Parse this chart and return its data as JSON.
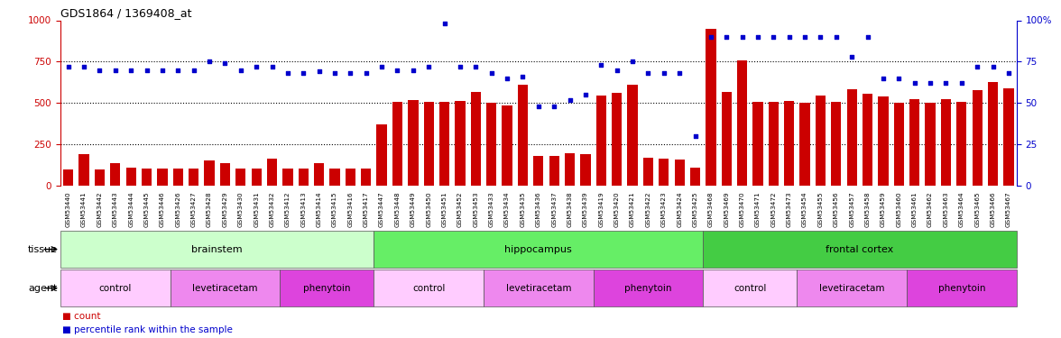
{
  "title": "GDS1864 / 1369408_at",
  "samples": [
    "GSM53440",
    "GSM53441",
    "GSM53442",
    "GSM53443",
    "GSM53444",
    "GSM53445",
    "GSM53446",
    "GSM53426",
    "GSM53427",
    "GSM53428",
    "GSM53429",
    "GSM53430",
    "GSM53431",
    "GSM53432",
    "GSM53412",
    "GSM53413",
    "GSM53414",
    "GSM53415",
    "GSM53416",
    "GSM53417",
    "GSM53447",
    "GSM53448",
    "GSM53449",
    "GSM53450",
    "GSM53451",
    "GSM53452",
    "GSM53453",
    "GSM53433",
    "GSM53434",
    "GSM53435",
    "GSM53436",
    "GSM53437",
    "GSM53438",
    "GSM53439",
    "GSM53419",
    "GSM53420",
    "GSM53421",
    "GSM53422",
    "GSM53423",
    "GSM53424",
    "GSM53425",
    "GSM53468",
    "GSM53469",
    "GSM53470",
    "GSM53471",
    "GSM53472",
    "GSM53473",
    "GSM53454",
    "GSM53455",
    "GSM53456",
    "GSM53457",
    "GSM53458",
    "GSM53459",
    "GSM53460",
    "GSM53461",
    "GSM53462",
    "GSM53463",
    "GSM53464",
    "GSM53465",
    "GSM53466",
    "GSM53467"
  ],
  "counts": [
    100,
    190,
    100,
    140,
    110,
    105,
    105,
    105,
    105,
    155,
    140,
    105,
    105,
    165,
    105,
    105,
    140,
    105,
    105,
    105,
    370,
    505,
    520,
    510,
    510,
    515,
    570,
    500,
    485,
    610,
    180,
    180,
    195,
    190,
    545,
    560,
    610,
    170,
    165,
    160,
    110,
    950,
    570,
    760,
    505,
    510,
    515,
    500,
    545,
    505,
    585,
    555,
    540,
    500,
    525,
    500,
    525,
    505,
    580,
    625,
    590
  ],
  "percentiles": [
    72,
    72,
    70,
    70,
    70,
    70,
    70,
    70,
    70,
    75,
    74,
    70,
    72,
    72,
    68,
    68,
    69,
    68,
    68,
    68,
    72,
    70,
    70,
    72,
    98,
    72,
    72,
    68,
    65,
    66,
    48,
    48,
    52,
    55,
    73,
    70,
    75,
    68,
    68,
    68,
    30,
    90,
    90,
    90,
    90,
    90,
    90,
    90,
    90,
    90,
    78,
    90,
    65,
    65,
    62,
    62,
    62,
    62,
    72,
    72,
    68
  ],
  "tissue_groups": [
    {
      "label": "brainstem",
      "start": 0,
      "end": 19,
      "color": "#ccffcc"
    },
    {
      "label": "hippocampus",
      "start": 20,
      "end": 40,
      "color": "#66ee66"
    },
    {
      "label": "frontal cortex",
      "start": 41,
      "end": 60,
      "color": "#44cc44"
    }
  ],
  "agent_groups": [
    {
      "label": "control",
      "start": 0,
      "end": 6,
      "color": "#ffccff"
    },
    {
      "label": "levetiracetam",
      "start": 7,
      "end": 13,
      "color": "#ee88ee"
    },
    {
      "label": "phenytoin",
      "start": 14,
      "end": 19,
      "color": "#dd44dd"
    },
    {
      "label": "control",
      "start": 20,
      "end": 26,
      "color": "#ffccff"
    },
    {
      "label": "levetiracetam",
      "start": 27,
      "end": 33,
      "color": "#ee88ee"
    },
    {
      "label": "phenytoin",
      "start": 34,
      "end": 40,
      "color": "#dd44dd"
    },
    {
      "label": "control",
      "start": 41,
      "end": 46,
      "color": "#ffccff"
    },
    {
      "label": "levetiracetam",
      "start": 47,
      "end": 53,
      "color": "#ee88ee"
    },
    {
      "label": "phenytoin",
      "start": 54,
      "end": 60,
      "color": "#dd44dd"
    }
  ],
  "bar_color": "#cc0000",
  "dot_color": "#0000cc",
  "ylim_left": [
    0,
    1000
  ],
  "ylim_right": [
    0,
    100
  ],
  "yticks_left": [
    0,
    250,
    500,
    750,
    1000
  ],
  "yticks_right": [
    0,
    25,
    50,
    75,
    100
  ],
  "ytick_right_labels": [
    "0",
    "25",
    "50",
    "75",
    "100%"
  ],
  "background_color": "#ffffff"
}
